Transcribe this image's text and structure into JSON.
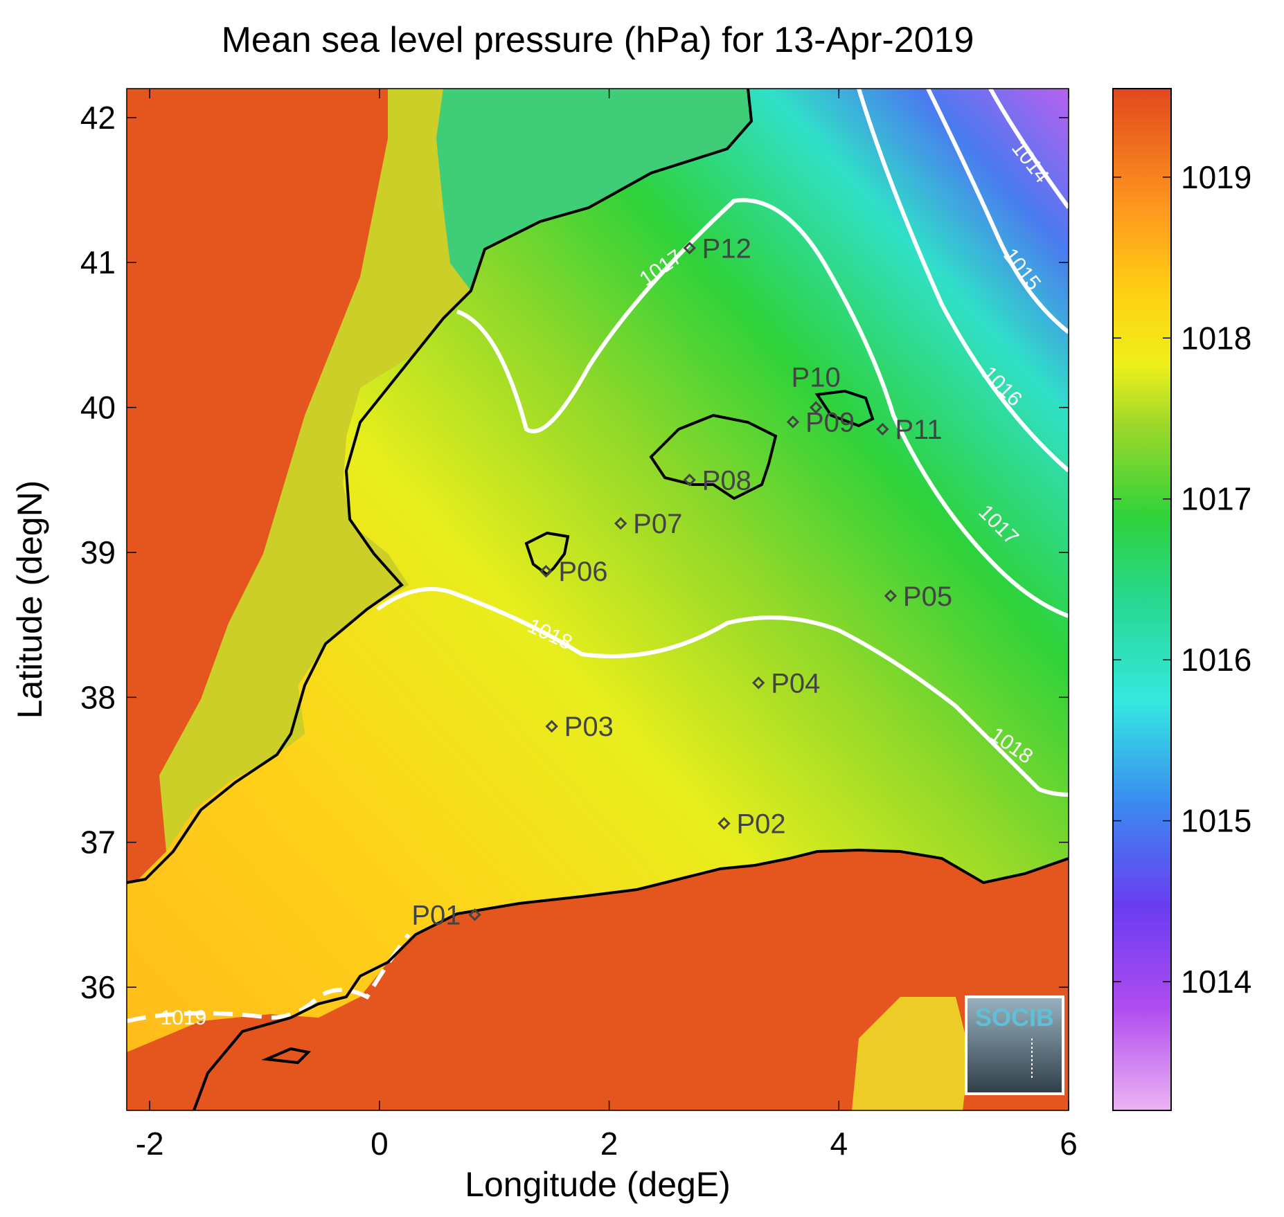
{
  "title": "Mean sea level pressure (hPa) for 13-Apr-2019",
  "axes": {
    "xlabel": "Longitude (degE)",
    "ylabel": "Latitude (degN)",
    "xlim": [
      -2.2,
      6.0
    ],
    "ylim": [
      35.15,
      42.2
    ],
    "xticks": [
      -2,
      0,
      2,
      4,
      6
    ],
    "yticks": [
      36,
      37,
      38,
      39,
      40,
      41,
      42
    ]
  },
  "colorbar": {
    "ticks": [
      1014,
      1015,
      1016,
      1017,
      1018,
      1019
    ],
    "range": [
      1013.2,
      1019.55
    ],
    "colors": [
      "#e8a8f0",
      "#a64ef0",
      "#6a3cf0",
      "#3a8af0",
      "#3ae6e6",
      "#28d88a",
      "#2ed23a",
      "#8ed82a",
      "#e4ee1a",
      "#ffe012",
      "#ffa81e",
      "#ff7a1e",
      "#e24a1e"
    ]
  },
  "contour_labels": [
    "1014",
    "1015",
    "1016",
    "1017",
    "1017",
    "1018",
    "1018",
    "1019"
  ],
  "stations": [
    {
      "name": "P01",
      "lon": 0.83,
      "lat": 36.5
    },
    {
      "name": "P02",
      "lon": 3.0,
      "lat": 37.13
    },
    {
      "name": "P03",
      "lon": 1.5,
      "lat": 37.8
    },
    {
      "name": "P04",
      "lon": 3.3,
      "lat": 38.1
    },
    {
      "name": "P05",
      "lon": 4.45,
      "lat": 38.7
    },
    {
      "name": "P06",
      "lon": 1.45,
      "lat": 38.87
    },
    {
      "name": "P07",
      "lon": 2.1,
      "lat": 39.2
    },
    {
      "name": "P08",
      "lon": 2.7,
      "lat": 39.5
    },
    {
      "name": "P09",
      "lon": 3.6,
      "lat": 39.9
    },
    {
      "name": "P10",
      "lon": 3.8,
      "lat": 40.0
    },
    {
      "name": "P11",
      "lon": 4.38,
      "lat": 39.85
    },
    {
      "name": "P12",
      "lon": 2.7,
      "lat": 41.1
    }
  ],
  "logo_text": "SOCIB"
}
